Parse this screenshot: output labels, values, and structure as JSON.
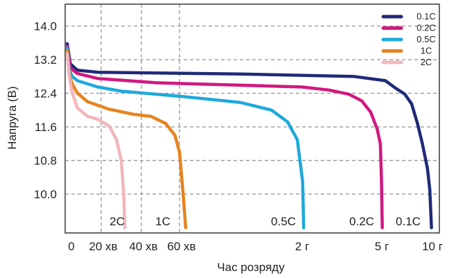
{
  "chart_data": {
    "type": "line",
    "xlabel": "Час розряду",
    "ylabel": "Напруга (В)",
    "y_ticks": [
      "14.0",
      "13.2",
      "12.4",
      "11.6",
      "10.8",
      "10.0"
    ],
    "x_ticks": [
      "0",
      "20 хв",
      "40 хв",
      "60 хв",
      "2 г",
      "5 г",
      "10 г"
    ],
    "grid": true,
    "legend_position": "top-right",
    "series": [
      {
        "name": "0.1C",
        "color": "#1f2a78",
        "curve_label": "0.1C",
        "points": [
          [
            0,
            13.58
          ],
          [
            0.03,
            13.1
          ],
          [
            0.1,
            12.95
          ],
          [
            0.3,
            12.9
          ],
          [
            1.5,
            12.86
          ],
          [
            4.0,
            12.8
          ],
          [
            5.5,
            12.7
          ],
          [
            6.4,
            12.52
          ],
          [
            7.2,
            12.38
          ],
          [
            7.8,
            12.15
          ],
          [
            8.3,
            11.7
          ],
          [
            8.75,
            11.2
          ],
          [
            9.2,
            10.6
          ],
          [
            9.4,
            10.1
          ],
          [
            9.55,
            9.2
          ]
        ]
      },
      {
        "name": "0.2C",
        "color": "#d2187f",
        "curve_label": "0.2C",
        "points": [
          [
            0,
            13.52
          ],
          [
            0.03,
            13.0
          ],
          [
            0.1,
            12.87
          ],
          [
            0.3,
            12.75
          ],
          [
            0.8,
            12.65
          ],
          [
            2.0,
            12.55
          ],
          [
            3.0,
            12.48
          ],
          [
            3.8,
            12.38
          ],
          [
            4.3,
            12.22
          ],
          [
            4.65,
            11.95
          ],
          [
            4.9,
            11.55
          ],
          [
            5.05,
            11.2
          ],
          [
            5.15,
            10.3
          ],
          [
            5.22,
            9.2
          ]
        ]
      },
      {
        "name": "0.5C",
        "color": "#1fa8dc",
        "curve_label": "0.5C",
        "points": [
          [
            0,
            13.48
          ],
          [
            0.02,
            12.95
          ],
          [
            0.05,
            12.8
          ],
          [
            0.1,
            12.7
          ],
          [
            0.3,
            12.55
          ],
          [
            0.5,
            12.45
          ],
          [
            1.0,
            12.33
          ],
          [
            1.5,
            12.18
          ],
          [
            1.75,
            12.0
          ],
          [
            1.88,
            11.72
          ],
          [
            1.96,
            11.3
          ],
          [
            2.02,
            10.3
          ],
          [
            2.06,
            9.2
          ]
        ]
      },
      {
        "name": "1C",
        "color": "#e8821e",
        "curve_label": "1C",
        "points": [
          [
            0,
            13.42
          ],
          [
            0.02,
            12.85
          ],
          [
            0.05,
            12.62
          ],
          [
            0.1,
            12.4
          ],
          [
            0.2,
            12.2
          ],
          [
            0.4,
            12.02
          ],
          [
            0.6,
            11.9
          ],
          [
            0.75,
            11.85
          ],
          [
            0.88,
            11.68
          ],
          [
            0.96,
            11.4
          ],
          [
            1.0,
            11.0
          ],
          [
            1.03,
            10.0
          ],
          [
            1.05,
            9.2
          ]
        ]
      },
      {
        "name": "2C",
        "color": "#f2b6bc",
        "curve_label": "2C",
        "points": [
          [
            0,
            13.35
          ],
          [
            0.02,
            12.8
          ],
          [
            0.05,
            12.4
          ],
          [
            0.1,
            12.05
          ],
          [
            0.2,
            11.85
          ],
          [
            0.3,
            11.78
          ],
          [
            0.4,
            11.62
          ],
          [
            0.46,
            11.3
          ],
          [
            0.5,
            10.8
          ],
          [
            0.52,
            10.0
          ],
          [
            0.53,
            9.2
          ]
        ]
      }
    ]
  }
}
